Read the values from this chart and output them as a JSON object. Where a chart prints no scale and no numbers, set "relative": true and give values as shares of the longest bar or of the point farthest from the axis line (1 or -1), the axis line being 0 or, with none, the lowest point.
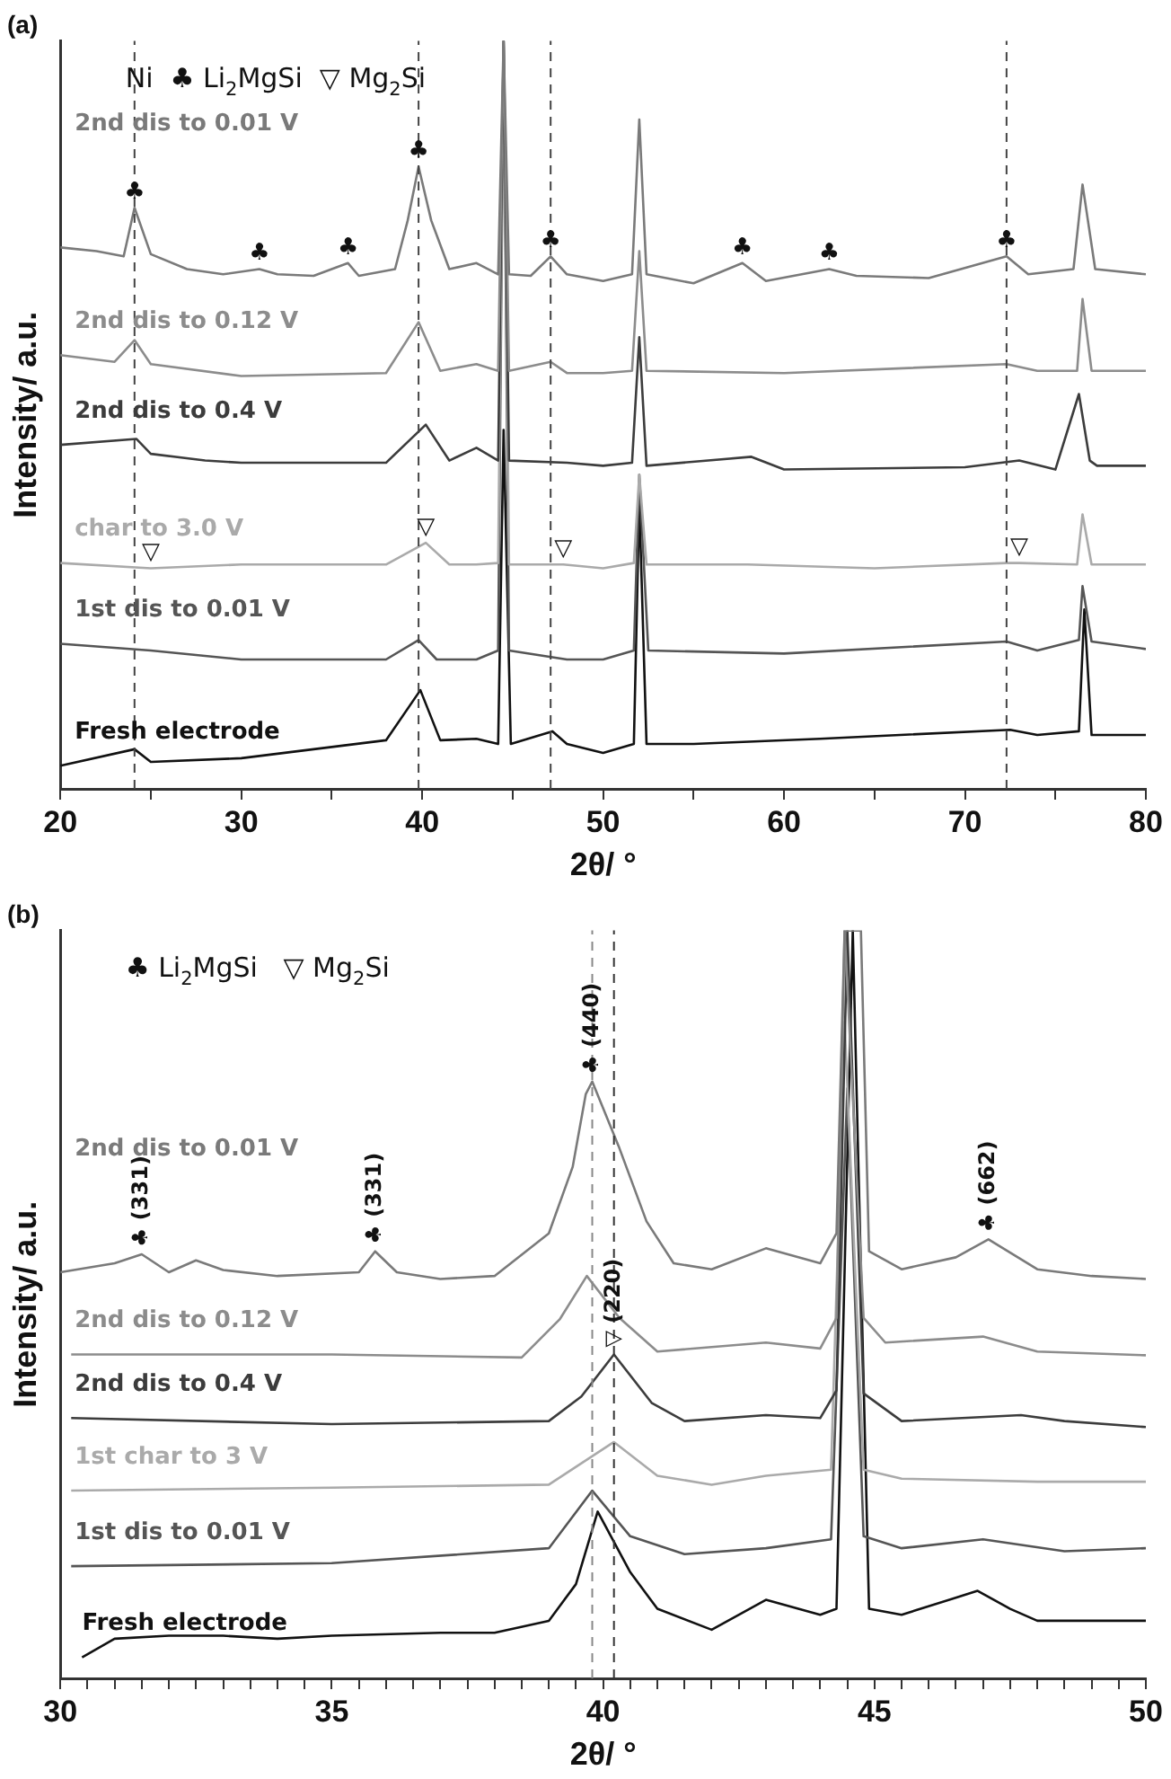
{
  "chart_data": [
    {
      "type": "line",
      "title": "(a)",
      "xlabel": "2θ/ °",
      "ylabel": "Intensity/ a.u.",
      "relative": true,
      "grid": false,
      "legend": false,
      "xlim": [
        20,
        80
      ],
      "xticks": [
        20,
        {
          "value": 25,
          "label": null
        },
        30,
        {
          "value": 35,
          "label": null
        },
        40,
        {
          "value": 45,
          "label": null
        },
        50,
        {
          "value": 55,
          "label": null
        },
        60,
        {
          "value": 65,
          "label": null
        },
        70,
        {
          "value": 75,
          "label": null
        },
        80
      ],
      "series": [
        {
          "name": "2nd dis to 0.01 V",
          "color": "#7a7a7a",
          "x": [
            20,
            22,
            23.5,
            24.1,
            25,
            27,
            29,
            31,
            32,
            34,
            35.9,
            36.5,
            38.5,
            39.2,
            39.8,
            40.5,
            41.5,
            43,
            44.2,
            44.5,
            44.8,
            46,
            47.1,
            48,
            50,
            51.6,
            52,
            52.4,
            55,
            57.7,
            59,
            62.5,
            64,
            68,
            72.3,
            73.5,
            76,
            76.5,
            77.2,
            80
          ],
          "values": [
            0.724,
            0.719,
            0.712,
            0.777,
            0.715,
            0.695,
            0.688,
            0.695,
            0.688,
            0.686,
            0.703,
            0.686,
            0.695,
            0.76,
            0.832,
            0.76,
            0.695,
            0.703,
            0.688,
            1,
            0.688,
            0.686,
            0.712,
            0.688,
            0.679,
            0.688,
            0.895,
            0.688,
            0.676,
            0.703,
            0.679,
            0.695,
            0.686,
            0.683,
            0.712,
            0.688,
            0.695,
            0.808,
            0.695,
            0.688
          ]
        },
        {
          "name": "2nd dis to 0.12 V",
          "color": "#8c8c8c",
          "x": [
            20,
            23,
            24.1,
            25,
            30,
            38,
            39.8,
            41,
            43,
            44.2,
            44.5,
            44.8,
            47.1,
            48,
            50,
            51.6,
            52,
            52.4,
            60,
            72.3,
            74,
            76.2,
            76.5,
            77,
            80
          ],
          "values": [
            0.58,
            0.571,
            0.6,
            0.568,
            0.552,
            0.556,
            0.624,
            0.559,
            0.568,
            0.559,
            1,
            0.559,
            0.571,
            0.556,
            0.556,
            0.559,
            0.719,
            0.559,
            0.556,
            0.568,
            0.559,
            0.559,
            0.655,
            0.559,
            0.559
          ]
        },
        {
          "name": "2nd dis to 0.4 V",
          "color": "#3c3c3c",
          "x": [
            20,
            24.2,
            25,
            28,
            30,
            38,
            40.2,
            41.5,
            43,
            44.2,
            44.5,
            44.8,
            48,
            50,
            51.6,
            52,
            52.4,
            58.2,
            60,
            70,
            73,
            75,
            76.3,
            76.9,
            77.3,
            80
          ],
          "values": [
            0.46,
            0.468,
            0.448,
            0.439,
            0.436,
            0.436,
            0.487,
            0.439,
            0.456,
            0.439,
            1,
            0.439,
            0.436,
            0.432,
            0.436,
            0.604,
            0.432,
            0.444,
            0.427,
            0.43,
            0.439,
            0.427,
            0.528,
            0.439,
            0.432,
            0.432
          ]
        },
        {
          "name": "char to 3.0 V",
          "color": "#aaaaaa",
          "x": [
            20,
            25,
            30,
            38,
            40.2,
            41.5,
            43,
            44.2,
            44.5,
            44.8,
            47.8,
            50,
            51.7,
            52,
            52.4,
            58,
            65,
            72.3,
            73,
            76.2,
            76.5,
            77,
            80
          ],
          "values": [
            0.302,
            0.295,
            0.3,
            0.3,
            0.329,
            0.3,
            0.3,
            0.302,
            1,
            0.3,
            0.3,
            0.295,
            0.302,
            0.42,
            0.3,
            0.3,
            0.295,
            0.302,
            0.302,
            0.3,
            0.367,
            0.3,
            0.3
          ]
        },
        {
          "name": "1st dis to 0.01 V",
          "color": "#555555",
          "x": [
            20,
            25,
            30,
            38,
            39.8,
            40.8,
            43,
            44.2,
            44.5,
            44.8,
            48,
            50,
            51.7,
            52,
            52.5,
            60,
            72.3,
            74,
            76.3,
            76.5,
            77,
            80
          ],
          "values": [
            0.194,
            0.185,
            0.173,
            0.173,
            0.199,
            0.173,
            0.173,
            0.185,
            1,
            0.185,
            0.173,
            0.173,
            0.185,
            0.42,
            0.185,
            0.181,
            0.197,
            0.185,
            0.199,
            0.271,
            0.197,
            0.187
          ]
        },
        {
          "name": "Fresh electrode",
          "color": "#111111",
          "x": [
            20,
            24.1,
            25,
            30,
            38,
            39.9,
            41,
            43,
            44.2,
            44.5,
            44.9,
            47.2,
            48,
            50,
            51.7,
            52,
            52.4,
            55,
            62,
            72.5,
            74,
            76.3,
            76.6,
            77,
            80
          ],
          "values": [
            0.031,
            0.053,
            0.036,
            0.041,
            0.065,
            0.132,
            0.065,
            0.067,
            0.06,
            0.48,
            0.06,
            0.077,
            0.06,
            0.048,
            0.06,
            0.384,
            0.06,
            0.06,
            0.067,
            0.079,
            0.072,
            0.077,
            0.24,
            0.072,
            0.072
          ]
        }
      ],
      "ref_lines": [
        {
          "axis": "x",
          "value": 24.1,
          "color": "#444444",
          "line_style": "dashed"
        },
        {
          "axis": "x",
          "value": 39.8,
          "color": "#444444",
          "line_style": "dashed"
        },
        {
          "axis": "x",
          "value": 47.1,
          "color": "#444444",
          "line_style": "dashed"
        },
        {
          "axis": "x",
          "value": 72.3,
          "color": "#444444",
          "line_style": "dashed"
        }
      ],
      "annotations": [
        "Ni  ♣ Li$_{2}$MgSi  ▽ Mg$_{2}$Si",
        {
          "text": "♣",
          "x": 24.1,
          "y": 0.777
        },
        {
          "text": "♣",
          "x": 31,
          "y": 0.695
        },
        {
          "text": "♣",
          "x": 35.9,
          "y": 0.703
        },
        {
          "text": "♣",
          "x": 39.8,
          "y": 0.832
        },
        {
          "text": "♣",
          "x": 47.1,
          "y": 0.712
        },
        {
          "text": "♣",
          "x": 57.7,
          "y": 0.703
        },
        {
          "text": "♣",
          "x": 62.5,
          "y": 0.695
        },
        {
          "text": "♣",
          "x": 72.3,
          "y": 0.712
        },
        {
          "text": "▽",
          "x": 25,
          "y": 0.295
        },
        {
          "text": "▽",
          "x": 40.2,
          "y": 0.329
        },
        {
          "text": "▽",
          "x": 47.8,
          "y": 0.3
        },
        {
          "text": "▽",
          "x": 73,
          "y": 0.302
        }
      ]
    },
    {
      "type": "line",
      "title": "(b)",
      "xlabel": "2θ/ °",
      "ylabel": "Intensity/ a.u.",
      "relative": true,
      "grid": false,
      "legend": false,
      "xlim": [
        30,
        50
      ],
      "xticks": [
        30,
        {
          "value": 30.5,
          "label": null
        },
        {
          "value": 31,
          "label": null
        },
        {
          "value": 31.5,
          "label": null
        },
        {
          "value": 32,
          "label": null
        },
        {
          "value": 32.5,
          "label": null
        },
        {
          "value": 33,
          "label": null
        },
        {
          "value": 33.5,
          "label": null
        },
        {
          "value": 34,
          "label": null
        },
        {
          "value": 34.5,
          "label": null
        },
        35,
        {
          "value": 35.5,
          "label": null
        },
        {
          "value": 36,
          "label": null
        },
        {
          "value": 36.5,
          "label": null
        },
        {
          "value": 37,
          "label": null
        },
        {
          "value": 37.5,
          "label": null
        },
        {
          "value": 38,
          "label": null
        },
        {
          "value": 38.5,
          "label": null
        },
        {
          "value": 39,
          "label": null
        },
        {
          "value": 39.5,
          "label": null
        },
        40,
        {
          "value": 40.5,
          "label": null
        },
        {
          "value": 41,
          "label": null
        },
        {
          "value": 41.5,
          "label": null
        },
        {
          "value": 42,
          "label": null
        },
        {
          "value": 42.5,
          "label": null
        },
        {
          "value": 43,
          "label": null
        },
        {
          "value": 43.5,
          "label": null
        },
        {
          "value": 44,
          "label": null
        },
        {
          "value": 44.5,
          "label": null
        },
        45,
        {
          "value": 45.5,
          "label": null
        },
        {
          "value": 46,
          "label": null
        },
        {
          "value": 46.5,
          "label": null
        },
        {
          "value": 47,
          "label": null
        },
        {
          "value": 47.5,
          "label": null
        },
        {
          "value": 48,
          "label": null
        },
        {
          "value": 48.5,
          "label": null
        },
        {
          "value": 49,
          "label": null
        },
        {
          "value": 49.5,
          "label": null
        },
        50
      ],
      "series": [
        {
          "name": "2nd dis to 0.01 V",
          "color": "#7a7a7a",
          "x": [
            30,
            31,
            31.5,
            32,
            32.5,
            33,
            34,
            35.5,
            35.8,
            36.2,
            37,
            38,
            39,
            39.44,
            39.68,
            39.8,
            40.3,
            40.8,
            41.3,
            42,
            43,
            44,
            44.3,
            44.45,
            44.75,
            44.9,
            45.5,
            46.5,
            47.1,
            48,
            49,
            50
          ],
          "values": [
            0.543,
            0.555,
            0.567,
            0.543,
            0.559,
            0.546,
            0.538,
            0.543,
            0.571,
            0.543,
            0.534,
            0.538,
            0.595,
            0.684,
            0.781,
            0.798,
            0.709,
            0.611,
            0.555,
            0.547,
            0.575,
            0.555,
            0.595,
            1,
            1,
            0.571,
            0.547,
            0.563,
            0.587,
            0.547,
            0.538,
            0.534
          ]
        },
        {
          "name": "2nd dis to 0.12 V",
          "color": "#8c8c8c",
          "x": [
            30.2,
            35,
            38.5,
            39.2,
            39.7,
            40.3,
            41,
            43,
            44,
            44.3,
            44.45,
            44.8,
            45.2,
            47,
            48,
            50
          ],
          "values": [
            0.433,
            0.433,
            0.429,
            0.48,
            0.538,
            0.482,
            0.437,
            0.449,
            0.441,
            0.482,
            1,
            0.482,
            0.449,
            0.457,
            0.437,
            0.432
          ]
        },
        {
          "name": "2nd dis to 0.4 V",
          "color": "#3c3c3c",
          "x": [
            30.2,
            35,
            39,
            39.6,
            40.2,
            40.9,
            41.5,
            43,
            44,
            44.3,
            44.5,
            44.8,
            45.5,
            47.7,
            48.5,
            50
          ],
          "values": [
            0.348,
            0.34,
            0.344,
            0.377,
            0.433,
            0.368,
            0.344,
            0.352,
            0.348,
            0.385,
            1,
            0.381,
            0.344,
            0.352,
            0.344,
            0.336
          ]
        },
        {
          "name": "1st char to 3 V",
          "color": "#aaaaaa",
          "x": [
            30.2,
            35,
            39,
            40.2,
            41,
            42,
            43,
            44.2,
            44.45,
            44.8,
            45.5,
            48,
            50
          ],
          "values": [
            0.251,
            0.255,
            0.259,
            0.316,
            0.271,
            0.259,
            0.271,
            0.279,
            0.878,
            0.279,
            0.267,
            0.263,
            0.263
          ]
        },
        {
          "name": "1st dis to 0.01 V",
          "color": "#555555",
          "x": [
            30.2,
            35,
            39,
            39.8,
            40.5,
            41.5,
            43,
            44.2,
            44.5,
            44.8,
            45.5,
            47,
            48.5,
            50
          ],
          "values": [
            0.15,
            0.154,
            0.174,
            0.251,
            0.19,
            0.166,
            0.174,
            0.186,
            0.789,
            0.19,
            0.174,
            0.186,
            0.17,
            0.174
          ]
        },
        {
          "name": "Fresh electrode",
          "color": "#111111",
          "x": [
            30.4,
            31,
            32,
            33,
            34,
            35,
            37,
            38,
            39,
            39.5,
            39.9,
            40.5,
            41,
            42,
            43,
            44,
            44.3,
            44.6,
            44.9,
            45.5,
            46.9,
            47.5,
            48,
            50
          ],
          "values": [
            0.028,
            0.053,
            0.057,
            0.057,
            0.053,
            0.057,
            0.061,
            0.061,
            0.077,
            0.126,
            0.223,
            0.142,
            0.093,
            0.065,
            0.105,
            0.085,
            0.093,
            1,
            0.093,
            0.085,
            0.117,
            0.093,
            0.077,
            0.077
          ]
        }
      ],
      "ref_lines": [
        {
          "axis": "x",
          "value": 39.8,
          "color": "#888888",
          "line_style": "dashed"
        },
        {
          "axis": "x",
          "value": 40.2,
          "color": "#333333",
          "line_style": "dashed"
        }
      ],
      "annotations": [
        "♣ Li$_{2}$MgSi   ▽ Mg$_{2}$Si",
        {
          "text": "♣ (331)",
          "x": 31.5,
          "y": 0.567
        },
        {
          "text": "♣ (331)",
          "x": 35.8,
          "y": 0.571
        },
        {
          "text": "♣ (440)",
          "x": 39.8,
          "y": 0.798
        },
        {
          "text": "▽ (220)",
          "x": 40.2,
          "y": 0.433
        },
        {
          "text": "♣ (662)",
          "x": 47.1,
          "y": 0.587
        }
      ]
    }
  ]
}
